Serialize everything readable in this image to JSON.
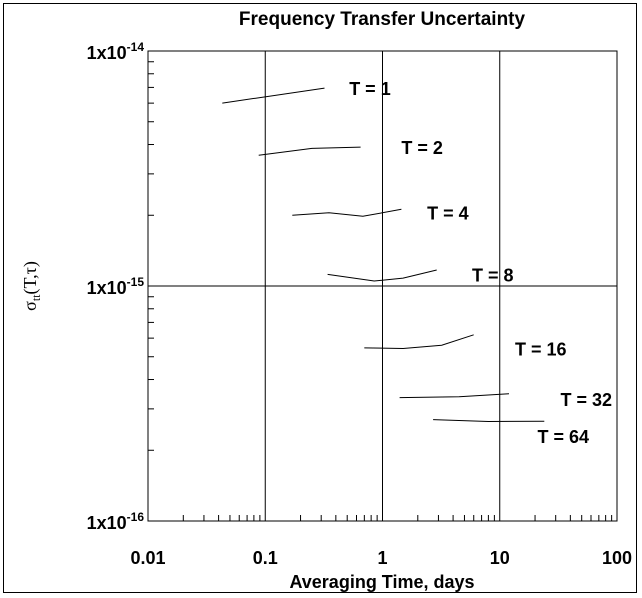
{
  "chart_data": {
    "type": "line",
    "title": "Frequency Transfer Uncertainty",
    "xlabel": "Averaging Time, days",
    "ylabel": "σtt(T,τ)",
    "xscale": "log",
    "yscale": "log",
    "xlim": [
      0.01,
      100
    ],
    "ylim": [
      1e-16,
      1e-14
    ],
    "x_ticks": [
      {
        "value": 0.01,
        "label": "0.01"
      },
      {
        "value": 0.1,
        "label": "0.1"
      },
      {
        "value": 1,
        "label": "1"
      },
      {
        "value": 10,
        "label": "10"
      },
      {
        "value": 100,
        "label": "100"
      }
    ],
    "y_ticks": [
      {
        "value": 1e-16,
        "base": "1x10",
        "exp": "-16"
      },
      {
        "value": 1e-15,
        "base": "1x10",
        "exp": "-15"
      },
      {
        "value": 1e-14,
        "base": "1x10",
        "exp": "-14"
      }
    ],
    "grid": true,
    "series": [
      {
        "name": "T = 1",
        "x": [
          0.043,
          0.32
        ],
        "y": [
          6e-15,
          6.95e-15
        ]
      },
      {
        "name": "T = 2",
        "x": [
          0.088,
          0.25,
          0.65
        ],
        "y": [
          3.6e-15,
          3.85e-15,
          3.9e-15
        ]
      },
      {
        "name": "T = 4",
        "x": [
          0.17,
          0.35,
          0.68,
          1.45
        ],
        "y": [
          2e-15,
          2.05e-15,
          1.98e-15,
          2.12e-15
        ]
      },
      {
        "name": "T = 8",
        "x": [
          0.34,
          0.85,
          1.5,
          2.9
        ],
        "y": [
          1.12e-15,
          1.05e-15,
          1.08e-15,
          1.17e-15
        ]
      },
      {
        "name": "T = 16",
        "x": [
          0.7,
          1.5,
          3.2,
          6.0
        ],
        "y": [
          5.45e-16,
          5.42e-16,
          5.6e-16,
          6.2e-16
        ]
      },
      {
        "name": "T = 32",
        "x": [
          1.4,
          4.5,
          12.0
        ],
        "y": [
          3.35e-16,
          3.38e-16,
          3.48e-16
        ]
      },
      {
        "name": "T = 64",
        "x": [
          2.7,
          8.0,
          24.0
        ],
        "y": [
          2.7e-16,
          2.65e-16,
          2.66e-16
        ]
      }
    ],
    "annotations": [
      {
        "text": "T = 1",
        "x": 0.52,
        "y": 6.95e-15
      },
      {
        "text": "T = 2",
        "x": 1.45,
        "y": 3.9e-15
      },
      {
        "text": "T = 4",
        "x": 2.4,
        "y": 2.05e-15
      },
      {
        "text": "T = 8",
        "x": 5.8,
        "y": 1.12e-15
      },
      {
        "text": "T = 16",
        "x": 13.5,
        "y": 5.42e-16
      },
      {
        "text": "T = 32",
        "x": 33,
        "y": 3.3e-16
      },
      {
        "text": "T = 64",
        "x": 21,
        "y": 2.3e-16
      }
    ]
  }
}
